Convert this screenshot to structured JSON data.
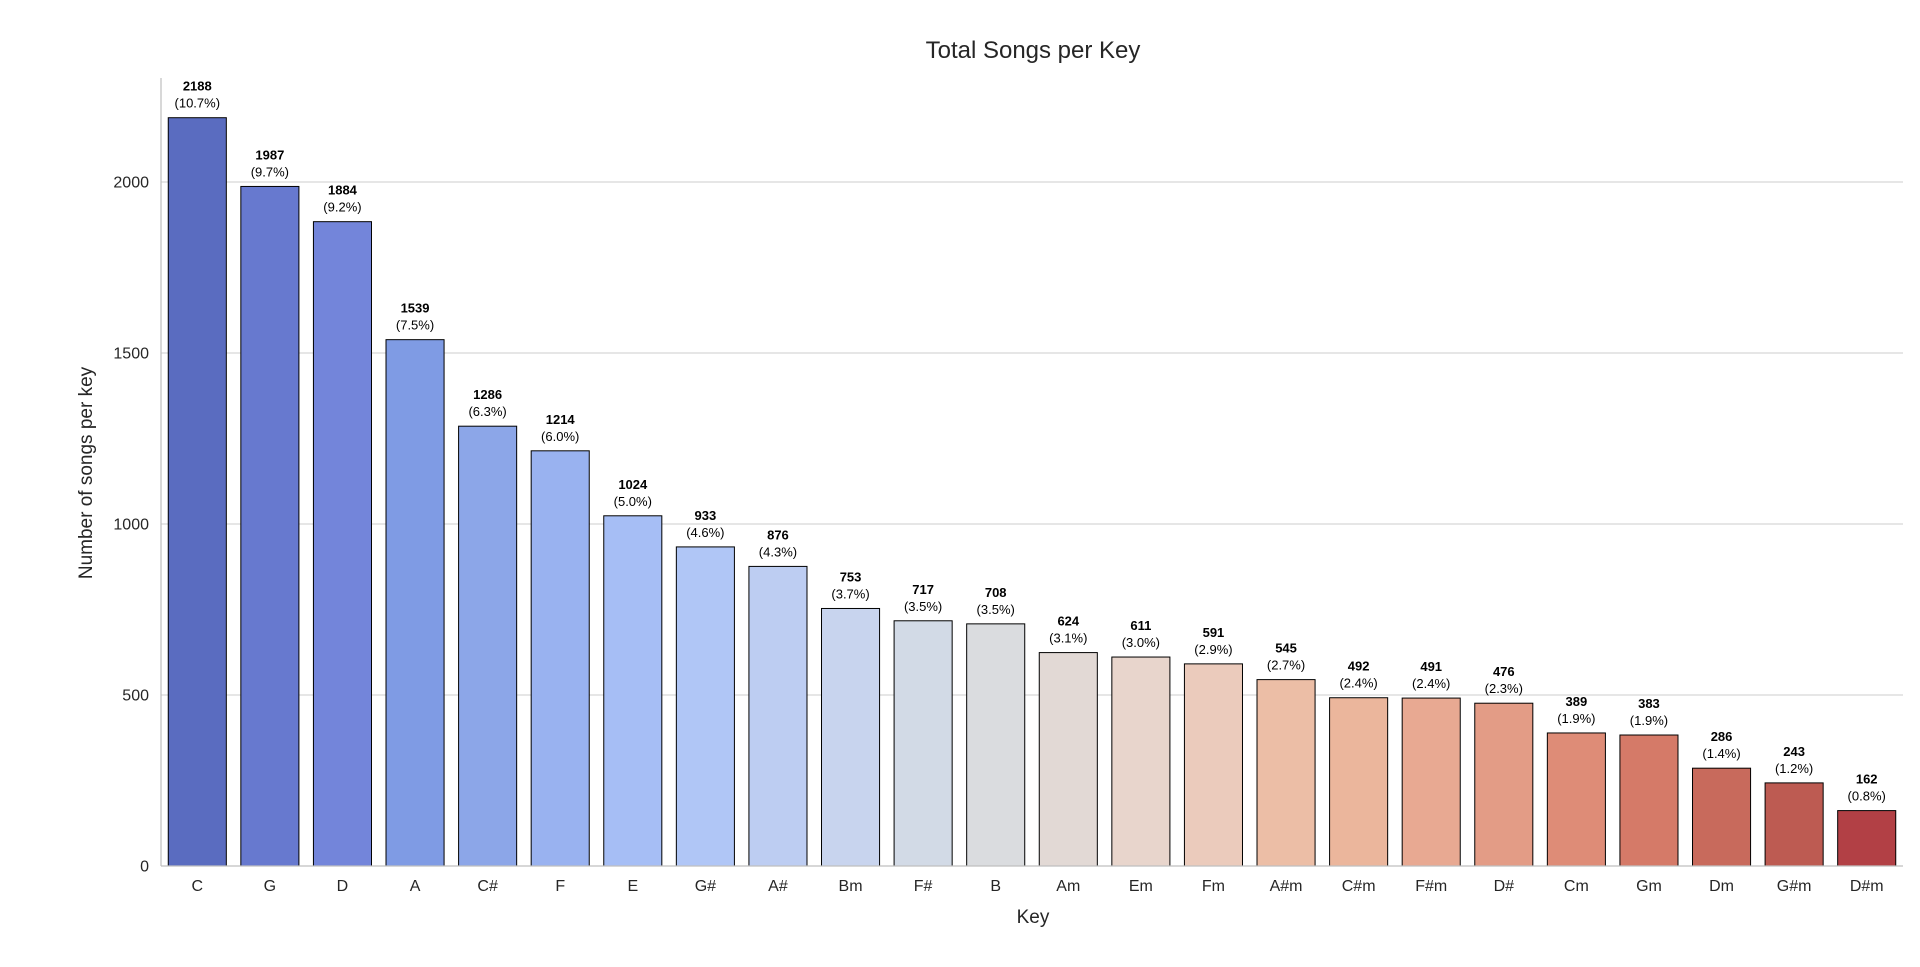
{
  "chart_data": {
    "type": "bar",
    "title": "Total Songs per Key",
    "xlabel": "Key",
    "ylabel": "Number of songs per key",
    "ylim": [
      0,
      2300
    ],
    "yticks": [
      0,
      500,
      1000,
      1500,
      2000
    ],
    "grid": "horizontal",
    "categories": [
      "C",
      "G",
      "D",
      "A",
      "C#",
      "F",
      "E",
      "G#",
      "A#",
      "Bm",
      "F#",
      "B",
      "Am",
      "Em",
      "Fm",
      "A#m",
      "C#m",
      "F#m",
      "D#",
      "Cm",
      "Gm",
      "Dm",
      "G#m",
      "D#m"
    ],
    "values": [
      2188,
      1987,
      1884,
      1539,
      1286,
      1214,
      1024,
      933,
      876,
      753,
      717,
      708,
      624,
      611,
      591,
      545,
      492,
      491,
      476,
      389,
      383,
      286,
      243,
      162
    ],
    "value_labels": [
      "2188",
      "1987",
      "1884",
      "1539",
      "1286",
      "1214",
      "1024",
      "933",
      "876",
      "753",
      "717",
      "708",
      "624",
      "611",
      "591",
      "545",
      "492",
      "491",
      "476",
      "389",
      "383",
      "286",
      "243",
      "162"
    ],
    "percent_labels": [
      "(10.7%)",
      "(9.7%)",
      "(9.2%)",
      "(7.5%)",
      "(6.3%)",
      "(6.0%)",
      "(5.0%)",
      "(4.6%)",
      "(4.3%)",
      "(3.7%)",
      "(3.5%)",
      "(3.5%)",
      "(3.1%)",
      "(3.0%)",
      "(2.9%)",
      "(2.7%)",
      "(2.4%)",
      "(2.4%)",
      "(2.3%)",
      "(1.9%)",
      "(1.9%)",
      "(1.4%)",
      "(1.2%)",
      "(0.8%)"
    ],
    "colors": [
      "#5a6cc0",
      "#6779cf",
      "#7385da",
      "#7f9be4",
      "#8ca6e8",
      "#99b2f0",
      "#a6bef5",
      "#b0c6f6",
      "#bdcdf2",
      "#c8d4ee",
      "#d2dae6",
      "#dadcdf",
      "#e2d9d5",
      "#e8d5cc",
      "#ebcbbc",
      "#ecbea6",
      "#ebb69c",
      "#e8a992",
      "#e39c86",
      "#de8c77",
      "#d57a68",
      "#c86a5c",
      "#bd5b52",
      "#b24045"
    ],
    "palette": "coolwarm"
  }
}
